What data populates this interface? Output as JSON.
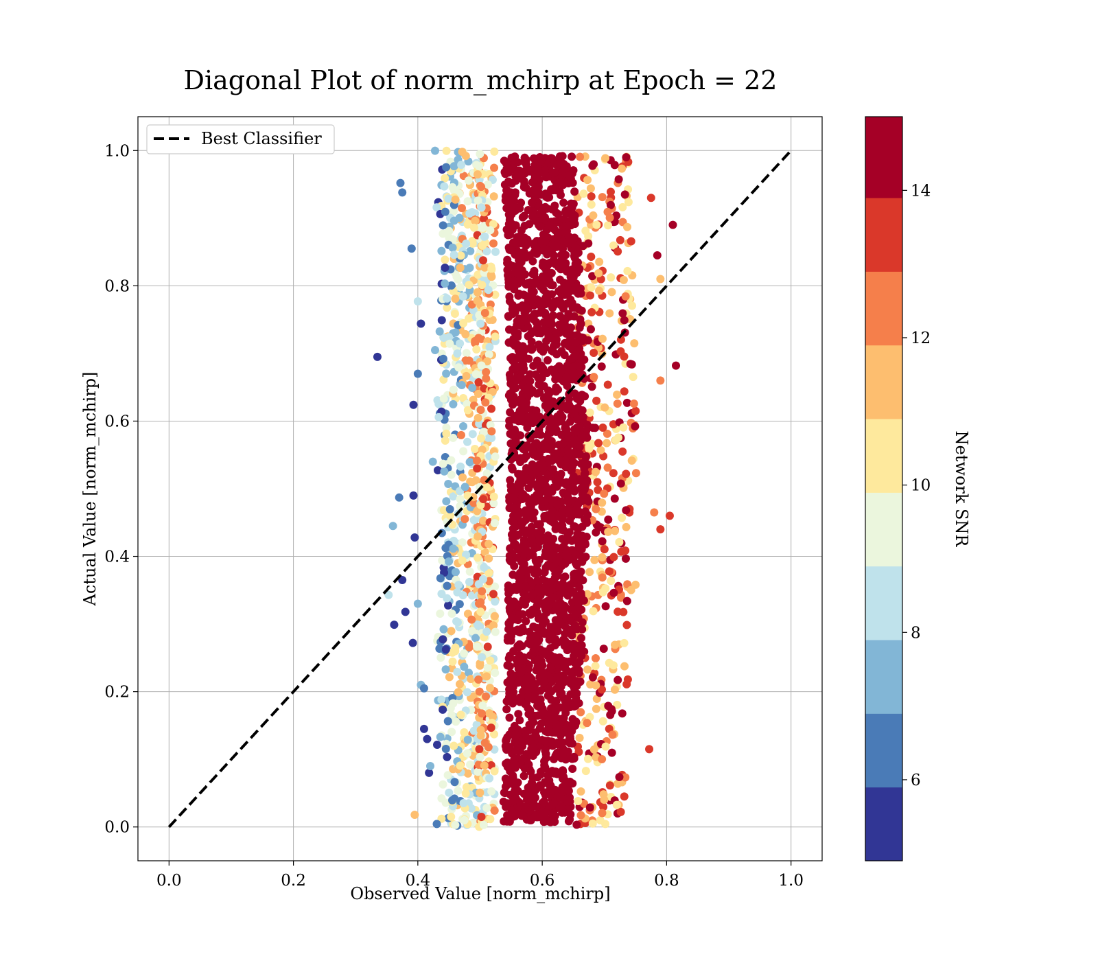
{
  "chart_data": {
    "type": "scatter",
    "title": "Diagonal Plot of norm_mchirp at Epoch = 22",
    "xlabel": "Observed Value [norm_mchirp]",
    "ylabel": "Actual Value [norm_mchirp]",
    "xlim": [
      -0.05,
      1.05
    ],
    "ylim": [
      -0.05,
      1.05
    ],
    "xticks": [
      "0.0",
      "0.2",
      "0.4",
      "0.6",
      "0.8",
      "1.0"
    ],
    "yticks": [
      "0.0",
      "0.2",
      "0.4",
      "0.6",
      "0.8",
      "1.0"
    ],
    "grid": true,
    "legend": {
      "placement": "upper-left",
      "entries": [
        {
          "label": "Best Classifier",
          "style": "black dashed line"
        }
      ]
    },
    "reference_line": {
      "name": "Best Classifier",
      "x": [
        0.0,
        1.0
      ],
      "y": [
        0.0,
        1.0
      ],
      "color": "#000000",
      "dash": "dashed"
    },
    "colorbar": {
      "label": "Network SNR",
      "range": [
        4.9,
        15.0
      ],
      "ticks": [
        "6",
        "8",
        "10",
        "12",
        "14"
      ],
      "bins": [
        {
          "from": 4.9,
          "to": 5.9,
          "color": "#313695"
        },
        {
          "from": 5.9,
          "to": 6.9,
          "color": "#4a7bb7"
        },
        {
          "from": 6.9,
          "to": 7.9,
          "color": "#82b6d6"
        },
        {
          "from": 7.9,
          "to": 8.9,
          "color": "#bfe2eb"
        },
        {
          "from": 8.9,
          "to": 9.9,
          "color": "#ebf6dd"
        },
        {
          "from": 9.9,
          "to": 10.9,
          "color": "#fee99d"
        },
        {
          "from": 10.9,
          "to": 11.9,
          "color": "#fdbe6f"
        },
        {
          "from": 11.9,
          "to": 12.9,
          "color": "#f57f4b"
        },
        {
          "from": 12.9,
          "to": 13.9,
          "color": "#da382a"
        },
        {
          "from": 13.9,
          "to": 15.0,
          "color": "#a50026"
        }
      ]
    },
    "series": [
      {
        "color_by": "Network SNR",
        "description_points": "observed value clusters around 0.56-0.62 for all actual values 0.0-1.0; low-SNR points at left edge (~0.42-0.5), high-SNR core 0.52-0.66",
        "points": [
          [
            0.335,
            0.695,
            5.2
          ],
          [
            0.372,
            0.952,
            6.5
          ],
          [
            0.375,
            0.938,
            6.3
          ],
          [
            0.39,
            0.855,
            6.6
          ],
          [
            0.4,
            0.777,
            8.3
          ],
          [
            0.405,
            0.744,
            5.4
          ],
          [
            0.4,
            0.67,
            6.2
          ],
          [
            0.393,
            0.624,
            5.3
          ],
          [
            0.37,
            0.487,
            6.6
          ],
          [
            0.393,
            0.49,
            5.6
          ],
          [
            0.36,
            0.445,
            7.3
          ],
          [
            0.395,
            0.428,
            5.5
          ],
          [
            0.375,
            0.365,
            5.8
          ],
          [
            0.353,
            0.343,
            8.5
          ],
          [
            0.4,
            0.33,
            7.6
          ],
          [
            0.38,
            0.318,
            5.3
          ],
          [
            0.362,
            0.299,
            5.4
          ],
          [
            0.392,
            0.272,
            5.5
          ],
          [
            0.395,
            0.018,
            11.2
          ],
          [
            0.41,
            0.145,
            5.3
          ],
          [
            0.405,
            0.21,
            7.0
          ],
          [
            0.41,
            0.205,
            6.5
          ],
          [
            0.415,
            0.13,
            5.2
          ],
          [
            0.418,
            0.08,
            5.5
          ],
          [
            0.42,
            0.09,
            7.5
          ],
          [
            0.735,
            0.99,
            14.5
          ],
          [
            0.733,
            0.935,
            14.4
          ],
          [
            0.775,
            0.93,
            13.0
          ],
          [
            0.81,
            0.89,
            14.6
          ],
          [
            0.79,
            0.81,
            11.3
          ],
          [
            0.785,
            0.845,
            14.0
          ],
          [
            0.815,
            0.682,
            14.7
          ],
          [
            0.79,
            0.66,
            12.5
          ],
          [
            0.805,
            0.46,
            13.8
          ],
          [
            0.79,
            0.44,
            13.5
          ],
          [
            0.78,
            0.465,
            12.2
          ],
          [
            0.772,
            0.115,
            13.2
          ],
          [
            0.748,
            0.715,
            11.0
          ],
          [
            0.75,
            0.358,
            11.5
          ]
        ]
      }
    ]
  }
}
